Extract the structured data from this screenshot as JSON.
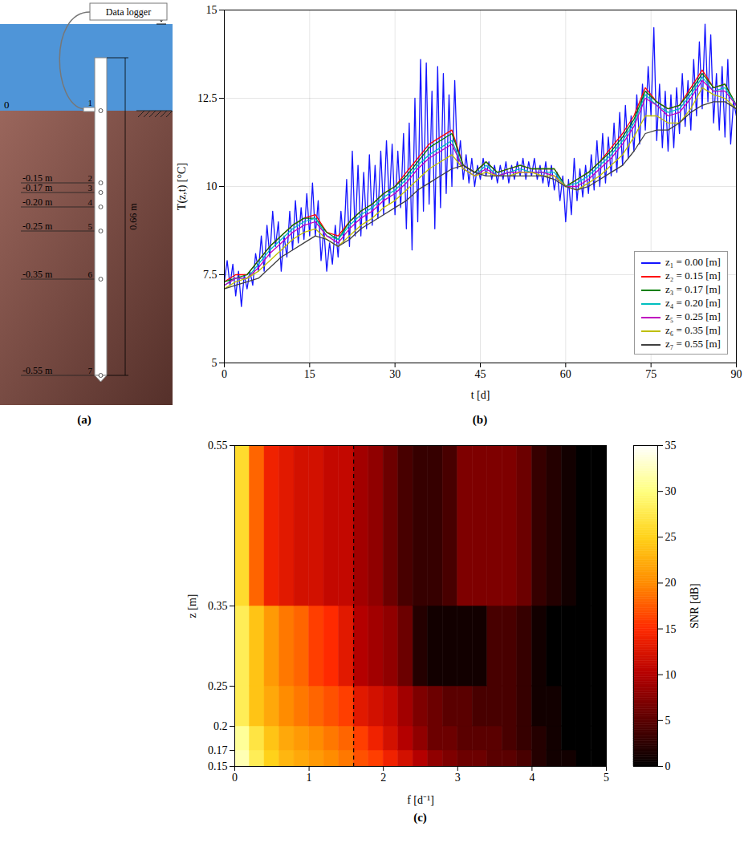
{
  "diagram": {
    "panel": "(a)",
    "logger": "Data logger",
    "surface_label": "0",
    "length_label": "0.66 m",
    "length": 0.66,
    "sensors": [
      {
        "number": "1",
        "depth": 0
      },
      {
        "number": "2",
        "depth": -0.15,
        "label": "-0.15 m"
      },
      {
        "number": "3",
        "depth": -0.17,
        "label": "-0.17 m"
      },
      {
        "number": "4",
        "depth": -0.2,
        "label": "-0.20 m"
      },
      {
        "number": "5",
        "depth": -0.25,
        "label": "-0.25 m"
      },
      {
        "number": "6",
        "depth": -0.35,
        "label": "-0.35 m"
      },
      {
        "number": "7",
        "depth": -0.55,
        "label": "-0.55 m"
      }
    ]
  },
  "chart_data": [
    {
      "panel": "(b)",
      "type": "line",
      "xlabel": "t [d]",
      "ylabel": "T(z,t) [°C]",
      "xlim": [
        0,
        90
      ],
      "xticks": [
        0,
        15,
        30,
        45,
        60,
        75,
        90
      ],
      "ylim": [
        5,
        15
      ],
      "yticks": [
        5,
        7.5,
        10,
        12.5,
        15
      ],
      "grid": true,
      "legend": "bottom-right",
      "x": [
        0,
        2,
        4,
        6,
        8,
        10,
        12,
        14,
        16,
        18,
        20,
        22,
        24,
        26,
        28,
        30,
        32,
        34,
        36,
        38,
        40,
        42,
        44,
        46,
        48,
        50,
        52,
        54,
        56,
        58,
        60,
        62,
        64,
        66,
        68,
        70,
        72,
        74,
        76,
        78,
        80,
        82,
        84,
        86,
        88,
        90
      ],
      "series": [
        {
          "name": "z₁ = 0.00 [m]",
          "color": "#1414ff",
          "x": [
            0,
            0.5,
            1,
            1.5,
            2,
            2.5,
            3,
            3.5,
            4,
            4.5,
            5,
            5.5,
            6,
            6.5,
            7,
            7.5,
            8,
            8.5,
            9,
            9.5,
            10,
            10.5,
            11,
            11.5,
            12,
            12.5,
            13,
            13.5,
            14,
            14.5,
            15,
            15.5,
            16,
            16.5,
            17,
            17.5,
            18,
            18.5,
            19,
            19.5,
            20,
            20.5,
            21,
            21.5,
            22,
            22.5,
            23,
            23.5,
            24,
            24.5,
            25,
            25.5,
            26,
            26.5,
            27,
            27.5,
            28,
            28.5,
            29,
            29.5,
            30,
            30.5,
            31,
            31.5,
            32,
            32.5,
            33,
            33.5,
            34,
            34.5,
            35,
            35.5,
            36,
            36.5,
            37,
            37.5,
            38,
            38.5,
            39,
            39.5,
            40,
            40.5,
            41,
            41.5,
            42,
            42.5,
            43,
            43.5,
            44,
            44.5,
            45,
            45.5,
            46,
            46.5,
            47,
            47.5,
            48,
            48.5,
            49,
            49.5,
            50,
            50.5,
            51,
            51.5,
            52,
            52.5,
            53,
            53.5,
            54,
            54.5,
            55,
            55.5,
            56,
            56.5,
            57,
            57.5,
            58,
            58.5,
            59,
            59.5,
            60,
            60.5,
            61,
            61.5,
            62,
            62.5,
            63,
            63.5,
            64,
            64.5,
            65,
            65.5,
            66,
            66.5,
            67,
            67.5,
            68,
            68.5,
            69,
            69.5,
            70,
            70.5,
            71,
            71.5,
            72,
            72.5,
            73,
            73.5,
            74,
            74.5,
            75,
            75.5,
            76,
            76.5,
            77,
            77.5,
            78,
            78.5,
            79,
            79.5,
            80,
            80.5,
            81,
            81.5,
            82,
            82.5,
            83,
            83.5,
            84,
            84.5,
            85,
            85.5,
            86,
            86.5,
            87,
            87.5,
            88,
            88.5,
            89,
            89.5,
            90
          ],
          "values": [
            7.3,
            7.9,
            7.2,
            7.8,
            6.9,
            7.6,
            6.6,
            7.5,
            7.1,
            7.6,
            7.2,
            8.1,
            7.6,
            8.6,
            7.6,
            8.9,
            8.0,
            9.3,
            8.3,
            9.0,
            7.6,
            8.6,
            8.0,
            9.3,
            8.2,
            9.6,
            8.4,
            9.4,
            8.5,
            9.8,
            8.6,
            10.1,
            8.6,
            9.6,
            7.9,
            8.8,
            7.6,
            8.4,
            7.8,
            8.9,
            8.0,
            9.3,
            8.4,
            10.2,
            8.3,
            11.0,
            8.6,
            10.6,
            8.6,
            10.4,
            8.8,
            10.9,
            8.9,
            10.6,
            9.1,
            11.0,
            9.2,
            11.3,
            9.5,
            11.2,
            9.2,
            11.0,
            9.4,
            11.5,
            8.8,
            11.8,
            8.2,
            12.5,
            9.0,
            13.6,
            9.3,
            13.5,
            9.5,
            12.7,
            8.8,
            13.4,
            9.4,
            13.2,
            9.8,
            12.6,
            10.0,
            13.0,
            10.5,
            11.3,
            10.2,
            10.9,
            10.1,
            10.8,
            10.0,
            10.6,
            10.2,
            10.8,
            10.3,
            10.7,
            10.2,
            10.6,
            10.1,
            10.6,
            10.2,
            10.7,
            10.1,
            10.6,
            10.2,
            10.7,
            10.3,
            10.8,
            10.2,
            10.7,
            10.3,
            10.8,
            10.2,
            10.6,
            10.1,
            10.7,
            10.0,
            10.6,
            9.9,
            10.4,
            9.6,
            10.3,
            9.0,
            10.2,
            9.2,
            10.8,
            9.6,
            10.5,
            9.7,
            10.6,
            9.8,
            10.9,
            9.9,
            11.3,
            10.0,
            11.5,
            10.1,
            11.4,
            10.3,
            11.8,
            10.4,
            12.1,
            10.6,
            12.3,
            10.8,
            12.0,
            11.0,
            12.6,
            11.2,
            12.9,
            11.6,
            13.4,
            12.0,
            14.5,
            11.3,
            12.9,
            11.1,
            12.7,
            11.0,
            12.6,
            11.1,
            12.8,
            11.5,
            13.2,
            11.7,
            13.0,
            11.6,
            13.6,
            12.0,
            14.1,
            12.2,
            14.6,
            12.4,
            14.3,
            11.8,
            13.2,
            11.6,
            13.4,
            11.4,
            13.6,
            11.2,
            12.4,
            12.0
          ]
        },
        {
          "name": "z₂ = 0.15 [m]",
          "color": "#ff0000",
          "values": [
            7.3,
            7.5,
            7.5,
            7.9,
            8.3,
            8.6,
            8.9,
            9.1,
            9.2,
            8.7,
            8.6,
            9.0,
            9.3,
            9.5,
            9.8,
            10.0,
            10.4,
            10.8,
            11.2,
            11.4,
            11.6,
            10.6,
            10.4,
            10.7,
            10.4,
            10.5,
            10.6,
            10.5,
            10.5,
            10.5,
            10.0,
            10.2,
            10.4,
            10.7,
            11.1,
            11.5,
            12.0,
            12.8,
            12.4,
            12.2,
            12.3,
            12.8,
            13.3,
            12.8,
            12.9,
            12.3
          ]
        },
        {
          "name": "z₃ = 0.17 [m]",
          "color": "#008000",
          "values": [
            7.3,
            7.4,
            7.5,
            7.9,
            8.3,
            8.6,
            8.9,
            9.1,
            9.1,
            8.7,
            8.5,
            9.0,
            9.3,
            9.5,
            9.8,
            10.0,
            10.3,
            10.7,
            11.1,
            11.3,
            11.5,
            10.6,
            10.4,
            10.7,
            10.4,
            10.5,
            10.6,
            10.5,
            10.5,
            10.5,
            10.0,
            10.2,
            10.4,
            10.7,
            11.0,
            11.4,
            11.9,
            12.7,
            12.4,
            12.2,
            12.3,
            12.7,
            13.2,
            12.8,
            12.9,
            12.3
          ]
        },
        {
          "name": "z₄ = 0.20 [m]",
          "color": "#00bfbf",
          "values": [
            7.2,
            7.4,
            7.4,
            7.8,
            8.2,
            8.5,
            8.8,
            9.0,
            9.1,
            8.6,
            8.5,
            8.9,
            9.2,
            9.4,
            9.7,
            9.9,
            10.2,
            10.6,
            10.9,
            11.1,
            11.3,
            10.5,
            10.3,
            10.6,
            10.3,
            10.4,
            10.5,
            10.4,
            10.4,
            10.4,
            10.0,
            10.1,
            10.3,
            10.6,
            10.9,
            11.3,
            11.8,
            12.6,
            12.3,
            12.1,
            12.2,
            12.6,
            13.1,
            12.7,
            12.8,
            12.3
          ]
        },
        {
          "name": "z₅ = 0.25 [m]",
          "color": "#bf00bf",
          "values": [
            7.2,
            7.4,
            7.4,
            7.7,
            8.1,
            8.4,
            8.7,
            8.9,
            9.0,
            8.6,
            8.4,
            8.8,
            9.1,
            9.3,
            9.6,
            9.8,
            10.1,
            10.5,
            10.8,
            11.0,
            11.2,
            10.5,
            10.3,
            10.5,
            10.3,
            10.4,
            10.4,
            10.4,
            10.4,
            10.3,
            10.0,
            10.0,
            10.2,
            10.5,
            10.8,
            11.2,
            11.7,
            12.5,
            12.3,
            12.0,
            12.1,
            12.5,
            13.0,
            12.7,
            12.7,
            12.3
          ]
        },
        {
          "name": "z₆ = 0.35 [m]",
          "color": "#bfbf00",
          "values": [
            7.1,
            7.3,
            7.4,
            7.6,
            7.9,
            8.2,
            8.5,
            8.7,
            8.8,
            8.5,
            8.3,
            8.6,
            8.9,
            9.1,
            9.4,
            9.6,
            9.9,
            10.2,
            10.5,
            10.7,
            10.9,
            10.5,
            10.3,
            10.4,
            10.3,
            10.3,
            10.4,
            10.4,
            10.3,
            10.3,
            10.0,
            9.9,
            10.1,
            10.3,
            10.6,
            10.9,
            11.4,
            12.0,
            12.0,
            11.8,
            11.8,
            12.2,
            12.8,
            12.6,
            12.5,
            12.2
          ]
        },
        {
          "name": "z₇ = 0.55 [m]",
          "color": "#404040",
          "values": [
            7.1,
            7.2,
            7.3,
            7.4,
            7.7,
            8.0,
            8.2,
            8.4,
            8.6,
            8.5,
            8.3,
            8.5,
            8.8,
            9.0,
            9.2,
            9.4,
            9.6,
            9.9,
            10.1,
            10.3,
            10.5,
            10.6,
            10.4,
            10.3,
            10.3,
            10.3,
            10.3,
            10.3,
            10.3,
            10.2,
            10.0,
            9.9,
            10.0,
            10.2,
            10.4,
            10.6,
            11.0,
            11.5,
            11.6,
            11.6,
            11.8,
            12.1,
            12.3,
            12.4,
            12.4,
            12.2
          ]
        }
      ]
    },
    {
      "panel": "(c)",
      "type": "heatmap",
      "xlabel": "f [d⁻¹]",
      "ylabel": "z [m]",
      "xlim": [
        0,
        5
      ],
      "xticks": [
        0,
        1,
        2,
        3,
        4,
        5
      ],
      "ylim": [
        0.15,
        0.55
      ],
      "yticks": [
        0.15,
        0.17,
        0.2,
        0.25,
        0.35,
        0.55
      ],
      "f_edges": [
        0,
        0.2,
        0.4,
        0.6,
        0.8,
        1,
        1.2,
        1.4,
        1.6,
        1.8,
        2,
        2.2,
        2.4,
        2.6,
        2.8,
        3,
        3.2,
        3.4,
        3.6,
        3.8,
        4,
        4.2,
        4.4,
        4.6,
        4.8,
        5
      ],
      "z_edges": [
        0.15,
        0.17,
        0.2,
        0.25,
        0.35,
        0.55
      ],
      "snr": [
        [
          32,
          28,
          25,
          23,
          22,
          21,
          20,
          19,
          17,
          16,
          14,
          12,
          10,
          8,
          7,
          6,
          6,
          5,
          5,
          4,
          2,
          1,
          1,
          0,
          0
        ],
        [
          31,
          27,
          24,
          22,
          21,
          20,
          19,
          18,
          16,
          14,
          12,
          10,
          8,
          6,
          6,
          5,
          5,
          5,
          4,
          3,
          2,
          1,
          0,
          0,
          0
        ],
        [
          28,
          24,
          22,
          20,
          19,
          18,
          17,
          16,
          13,
          12,
          11,
          9,
          7,
          6,
          5,
          5,
          4,
          4,
          4,
          3,
          1,
          1,
          0,
          0,
          0
        ],
        [
          28,
          24,
          21,
          19,
          18,
          16,
          15,
          13,
          10,
          9,
          8,
          6,
          2,
          1,
          1,
          1,
          1,
          4,
          4,
          3,
          1,
          0,
          0,
          0,
          0
        ],
        [
          26,
          18,
          14,
          13,
          12,
          12,
          11,
          11,
          9,
          8,
          6,
          4,
          3,
          3,
          4,
          7,
          7,
          7,
          7,
          6,
          3,
          2,
          1,
          0,
          0
        ]
      ],
      "vline": {
        "x": 1.6,
        "line_style": "dashed"
      },
      "colorbar": {
        "label": "SNR [dB]",
        "range": [
          0,
          35
        ],
        "ticks": [
          0,
          5,
          10,
          15,
          20,
          25,
          30,
          35
        ]
      }
    }
  ]
}
